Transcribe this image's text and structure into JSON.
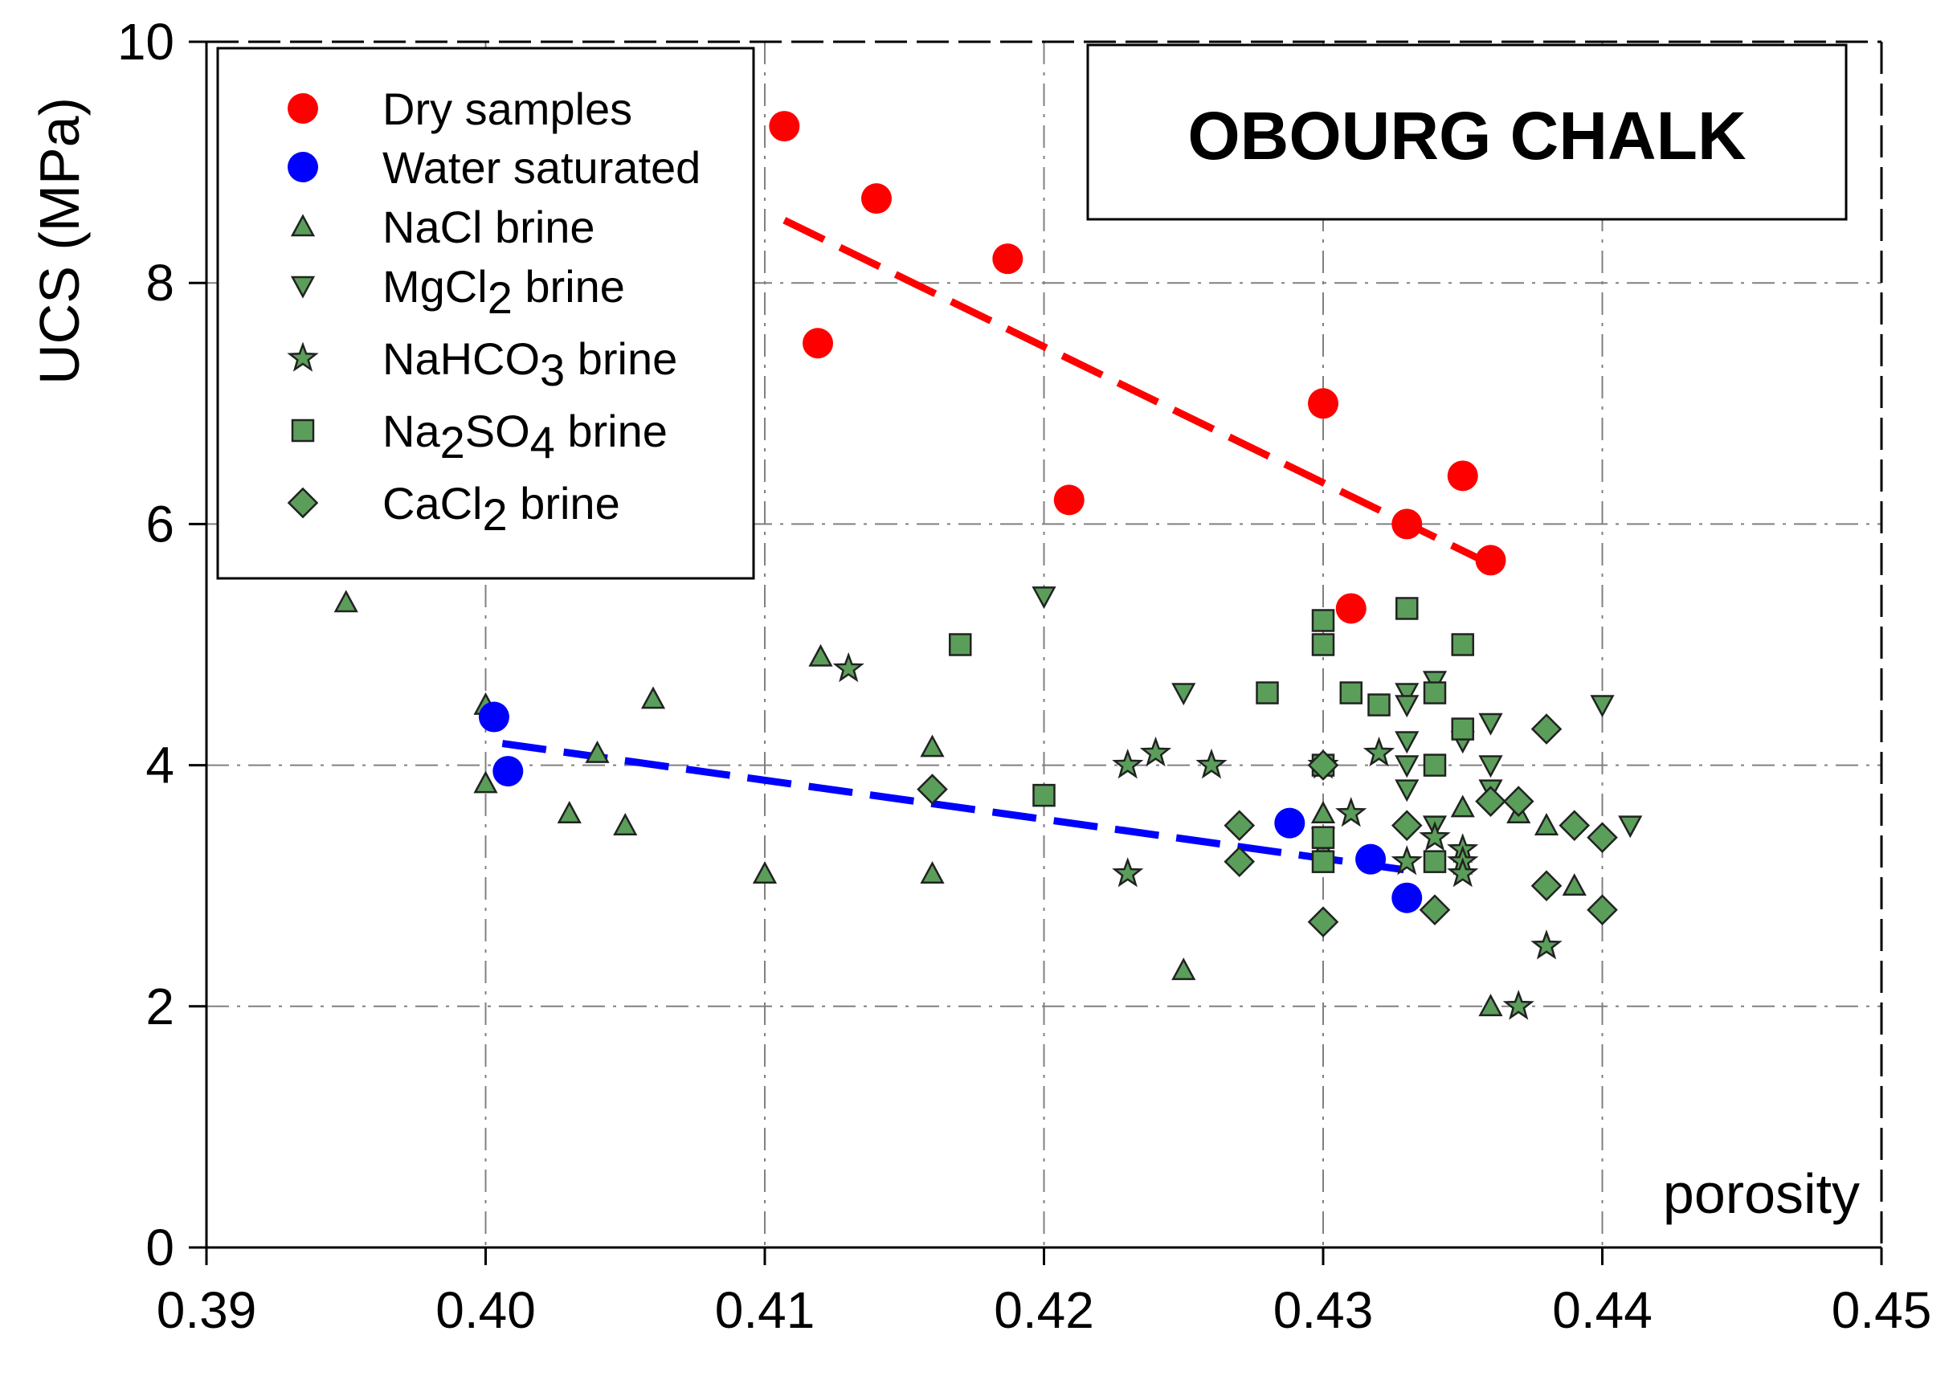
{
  "chart_data": {
    "type": "scatter",
    "title": "OBOURG CHALK",
    "xlabel": "porosity",
    "ylabel": "UCS (MPa)",
    "xlim": [
      0.39,
      0.45
    ],
    "ylim": [
      0,
      10
    ],
    "x_ticks": [
      "0.39",
      "0.40",
      "0.41",
      "0.42",
      "0.43",
      "0.44",
      "0.45"
    ],
    "y_ticks": [
      "0",
      "2",
      "4",
      "6",
      "8",
      "10"
    ],
    "grid": true,
    "legend_position": "top-left",
    "colors": {
      "dry": "#ff0000",
      "water": "#0000ff",
      "brine": "#5a9e5a",
      "axis": "#000000",
      "grid": "#808080"
    },
    "series": [
      {
        "name": "Dry samples",
        "marker": "circle",
        "color": "#ff0000",
        "points": [
          [
            0.4107,
            9.3
          ],
          [
            0.4119,
            7.5
          ],
          [
            0.414,
            8.7
          ],
          [
            0.4187,
            8.2
          ],
          [
            0.4209,
            6.2
          ],
          [
            0.43,
            7.0
          ],
          [
            0.431,
            5.3
          ],
          [
            0.433,
            6.0
          ],
          [
            0.435,
            6.4
          ],
          [
            0.436,
            5.7
          ]
        ]
      },
      {
        "name": "Water saturated",
        "marker": "circle",
        "color": "#0000ff",
        "points": [
          [
            0.4003,
            4.4
          ],
          [
            0.4008,
            3.95
          ],
          [
            0.4288,
            3.52
          ],
          [
            0.4317,
            3.22
          ],
          [
            0.433,
            2.9
          ]
        ]
      },
      {
        "name": "NaCl brine",
        "marker": "triangle-up",
        "color": "#5a9e5a",
        "points": [
          [
            0.395,
            5.35
          ],
          [
            0.4,
            4.5
          ],
          [
            0.4,
            3.85
          ],
          [
            0.403,
            3.6
          ],
          [
            0.404,
            4.1
          ],
          [
            0.405,
            3.5
          ],
          [
            0.406,
            4.55
          ],
          [
            0.41,
            3.1
          ],
          [
            0.412,
            4.9
          ],
          [
            0.416,
            4.15
          ],
          [
            0.416,
            3.1
          ],
          [
            0.425,
            2.3
          ],
          [
            0.43,
            3.6
          ],
          [
            0.43,
            3.3
          ],
          [
            0.435,
            3.65
          ],
          [
            0.436,
            2.0
          ],
          [
            0.437,
            3.6
          ],
          [
            0.438,
            3.5
          ],
          [
            0.439,
            3.0
          ]
        ]
      },
      {
        "name": "MgCl2 brine",
        "marker": "triangle-down",
        "color": "#5a9e5a",
        "points": [
          [
            0.42,
            5.4
          ],
          [
            0.425,
            4.6
          ],
          [
            0.43,
            3.4
          ],
          [
            0.433,
            4.6
          ],
          [
            0.433,
            4.5
          ],
          [
            0.433,
            4.2
          ],
          [
            0.433,
            4.0
          ],
          [
            0.433,
            3.8
          ],
          [
            0.434,
            4.7
          ],
          [
            0.434,
            3.5
          ],
          [
            0.435,
            4.2
          ],
          [
            0.436,
            4.35
          ],
          [
            0.436,
            4.0
          ],
          [
            0.436,
            3.8
          ],
          [
            0.44,
            4.5
          ],
          [
            0.441,
            3.5
          ]
        ]
      },
      {
        "name": "NaHCO3 brine",
        "marker": "star",
        "color": "#5a9e5a",
        "points": [
          [
            0.413,
            4.8
          ],
          [
            0.423,
            4.0
          ],
          [
            0.423,
            3.1
          ],
          [
            0.424,
            4.1
          ],
          [
            0.426,
            4.0
          ],
          [
            0.43,
            4.0
          ],
          [
            0.431,
            3.6
          ],
          [
            0.432,
            4.1
          ],
          [
            0.433,
            3.2
          ],
          [
            0.434,
            3.4
          ],
          [
            0.435,
            3.3
          ],
          [
            0.435,
            3.2
          ],
          [
            0.435,
            3.1
          ],
          [
            0.437,
            2.0
          ],
          [
            0.438,
            2.5
          ]
        ]
      },
      {
        "name": "Na2SO4 brine",
        "marker": "square",
        "color": "#5a9e5a",
        "points": [
          [
            0.417,
            5.0
          ],
          [
            0.42,
            3.75
          ],
          [
            0.428,
            4.6
          ],
          [
            0.43,
            5.2
          ],
          [
            0.43,
            5.0
          ],
          [
            0.43,
            4.0
          ],
          [
            0.43,
            3.4
          ],
          [
            0.43,
            3.2
          ],
          [
            0.431,
            4.6
          ],
          [
            0.432,
            4.5
          ],
          [
            0.433,
            5.3
          ],
          [
            0.434,
            4.6
          ],
          [
            0.434,
            4.0
          ],
          [
            0.434,
            3.2
          ],
          [
            0.435,
            5.0
          ],
          [
            0.435,
            4.3
          ]
        ]
      },
      {
        "name": "CaCl2 brine",
        "marker": "diamond",
        "color": "#5a9e5a",
        "points": [
          [
            0.416,
            3.8
          ],
          [
            0.427,
            3.5
          ],
          [
            0.427,
            3.2
          ],
          [
            0.43,
            4.0
          ],
          [
            0.43,
            2.7
          ],
          [
            0.433,
            3.5
          ],
          [
            0.434,
            2.8
          ],
          [
            0.436,
            3.7
          ],
          [
            0.437,
            3.7
          ],
          [
            0.438,
            4.3
          ],
          [
            0.438,
            3.0
          ],
          [
            0.439,
            3.5
          ],
          [
            0.44,
            3.4
          ],
          [
            0.44,
            2.8
          ]
        ]
      }
    ],
    "trend_lines": [
      {
        "name": "Dry samples trend",
        "color": "#ff0000",
        "style": "dashed",
        "points": [
          [
            0.4107,
            8.52
          ],
          [
            0.4357,
            5.7
          ]
        ]
      },
      {
        "name": "Water saturated trend",
        "color": "#0000ff",
        "style": "dashed",
        "points": [
          [
            0.4006,
            4.18
          ],
          [
            0.433,
            3.13
          ]
        ]
      }
    ]
  }
}
